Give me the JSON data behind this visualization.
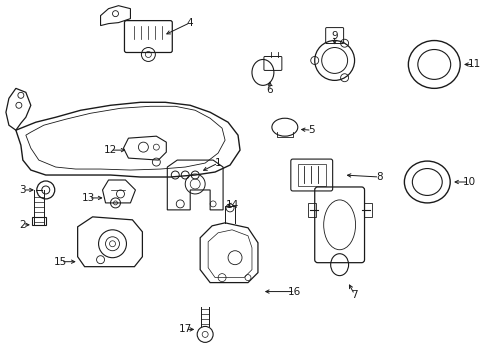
{
  "background_color": "#ffffff",
  "line_color": "#1a1a1a",
  "figsize": [
    4.89,
    3.6
  ],
  "dpi": 100,
  "parts": [
    1,
    2,
    3,
    4,
    5,
    6,
    7,
    8,
    9,
    10,
    11,
    12,
    13,
    14,
    15,
    16,
    17
  ]
}
